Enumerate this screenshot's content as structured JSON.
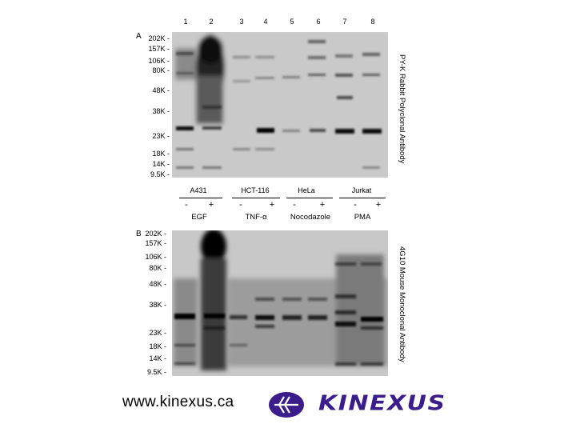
{
  "lanes": [
    "1",
    "2",
    "3",
    "4",
    "5",
    "6",
    "7",
    "8"
  ],
  "panel_a": {
    "letter": "A",
    "mw_markers": [
      "202K -",
      "157K -",
      "106K -",
      "80K -",
      "48K -",
      "38K -",
      "23K -",
      "18K -",
      "14K -",
      "9.5K -"
    ],
    "side_label": "PY-K Rabbit Polyclonal Antibody"
  },
  "panel_b": {
    "letter": "B",
    "mw_markers": [
      "202K -",
      "157K -",
      "106K -",
      "80K -",
      "48K -",
      "38K -",
      "23K -",
      "18K -",
      "14K -",
      "9.5K -"
    ],
    "side_label": "4G10 Mouse Monoclonal Antibody"
  },
  "groups": [
    {
      "cell": "A431",
      "treatment": "EGF",
      "minus": "-",
      "plus": "+"
    },
    {
      "cell": "HCT-116",
      "treatment": "TNF-α",
      "minus": "-",
      "plus": "+"
    },
    {
      "cell": "HeLa",
      "treatment": "Nocodazole",
      "minus": "-",
      "plus": "+"
    },
    {
      "cell": "Jurkat",
      "treatment": "PMA",
      "minus": "-",
      "plus": "+"
    }
  ],
  "footer": {
    "url": "www.kinexus.ca",
    "brand": "KINEXUS",
    "brand_color": "#3a1d8a"
  }
}
